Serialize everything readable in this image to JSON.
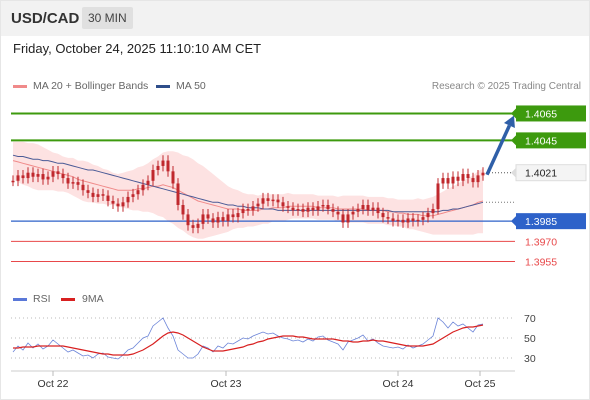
{
  "header": {
    "pair": "USD/CAD",
    "timeframe": "30 MIN"
  },
  "datetime": "Friday, October 24, 2025 11:10:10 AM CET",
  "legend": {
    "ma20": "MA 20 + Bollinger Bands",
    "ma50": "MA 50",
    "rsi": "RSI",
    "rsi_ma": "9MA"
  },
  "research": "Research © 2025 Trading Central",
  "colors": {
    "green": "#3d9a0e",
    "blue": "#2e62c9",
    "red": "#e8484a",
    "candle": "#c0282d",
    "ma20": "#f08a8a",
    "ma50": "#4a5a96",
    "band": "#fde2e2",
    "rsi": "#6b84d8",
    "rsi_ma": "#d82020",
    "arrow": "#2f5fa8"
  },
  "chart_data": {
    "type": "candlestick",
    "x_labels": [
      "Oct 22",
      "Oct 23",
      "Oct 24",
      "Oct 25"
    ],
    "price_range": [
      1.3945,
      1.4075
    ],
    "current_price": "1.4021",
    "levels": [
      {
        "label": "1.4065",
        "value": 1.4065,
        "style": "resistance"
      },
      {
        "label": "1.4045",
        "value": 1.4045,
        "style": "resistance"
      },
      {
        "label": "1.3985",
        "value": 1.3985,
        "style": "pivot"
      },
      {
        "label": "1.3970",
        "value": 1.397,
        "style": "support"
      },
      {
        "label": "1.3955",
        "value": 1.3955,
        "style": "support"
      }
    ],
    "closes": [
      1.4015,
      1.4019,
      1.4017,
      1.4021,
      1.4018,
      1.402,
      1.4016,
      1.4018,
      1.4022,
      1.402,
      1.4017,
      1.4013,
      1.4014,
      1.4012,
      1.4008,
      1.4006,
      1.4003,
      1.4005,
      1.4004,
      1.4,
      1.3998,
      1.3996,
      1.3999,
      1.4003,
      1.4005,
      1.4008,
      1.4012,
      1.4015,
      1.4023,
      1.4026,
      1.403,
      1.4022,
      1.4013,
      1.3997,
      1.399,
      1.3982,
      1.398,
      1.3983,
      1.399,
      1.3987,
      1.3984,
      1.3988,
      1.3985,
      1.399,
      1.3988,
      1.3991,
      1.3994,
      1.3993,
      1.3996,
      1.3998,
      1.4002,
      1.4,
      1.4001,
      1.3999,
      1.3996,
      1.3995,
      1.3993,
      1.3994,
      1.3992,
      1.3995,
      1.3993,
      1.3996,
      1.3997,
      1.3994,
      1.3992,
      1.399,
      1.3984,
      1.399,
      1.3992,
      1.3994,
      1.3997,
      1.3993,
      1.3995,
      1.3991,
      1.3988,
      1.3987,
      1.3985,
      1.3986,
      1.3984,
      1.3987,
      1.3985,
      1.3986,
      1.3988,
      1.3991,
      1.3994,
      1.4013,
      1.4017,
      1.4013,
      1.4018,
      1.4015,
      1.402,
      1.4017,
      1.4014,
      1.4019,
      1.4021
    ],
    "ma20": [
      1.403,
      1.4029,
      1.4028,
      1.4027,
      1.4026,
      1.4025,
      1.4024,
      1.4023,
      1.4022,
      1.4021,
      1.402,
      1.4019,
      1.4018,
      1.4016,
      1.4015,
      1.4014,
      1.4013,
      1.4012,
      1.4011,
      1.401,
      1.4009,
      1.4008,
      1.4008,
      1.4008,
      1.4008,
      1.4009,
      1.4009,
      1.401,
      1.4011,
      1.4011,
      1.4012,
      1.4011,
      1.401,
      1.4008,
      1.4006,
      1.4004,
      1.4002,
      1.4,
      1.3999,
      1.3998,
      1.3997,
      1.3996,
      1.3995,
      1.3994,
      1.3994,
      1.3994,
      1.3993,
      1.3993,
      1.3993,
      1.3993,
      1.3994,
      1.3994,
      1.3995,
      1.3995,
      1.3995,
      1.3996,
      1.3996,
      1.3996,
      1.3996,
      1.3996,
      1.3996,
      1.3995,
      1.3995,
      1.3995,
      1.3995,
      1.3994,
      1.3994,
      1.3994,
      1.3994,
      1.3994,
      1.3994,
      1.3993,
      1.3993,
      1.3993,
      1.3993,
      1.3992,
      1.3992,
      1.3991,
      1.3991,
      1.399,
      1.399,
      1.399,
      1.3989,
      1.3989,
      1.3989,
      1.399,
      1.3991,
      1.3992,
      1.3993,
      1.3994,
      1.3995,
      1.3996,
      1.3997,
      1.3999,
      1.4
    ],
    "ma50": [
      1.4034,
      1.4033,
      1.4033,
      1.4032,
      1.4031,
      1.4031,
      1.403,
      1.403,
      1.4029,
      1.4028,
      1.4028,
      1.4027,
      1.4026,
      1.4025,
      1.4024,
      1.4023,
      1.4023,
      1.4022,
      1.4021,
      1.402,
      1.4019,
      1.4018,
      1.4017,
      1.4016,
      1.4015,
      1.4014,
      1.4013,
      1.4012,
      1.4011,
      1.401,
      1.4009,
      1.4008,
      1.4007,
      1.4006,
      1.4005,
      1.4004,
      1.4003,
      1.4002,
      1.4001,
      1.4,
      1.3999,
      1.3999,
      1.3998,
      1.3997,
      1.3997,
      1.3996,
      1.3996,
      1.3995,
      1.3995,
      1.3995,
      1.3994,
      1.3994,
      1.3994,
      1.3993,
      1.3993,
      1.3993,
      1.3993,
      1.3993,
      1.3993,
      1.3993,
      1.3993,
      1.3993,
      1.3993,
      1.3993,
      1.3993,
      1.3993,
      1.3993,
      1.3993,
      1.3993,
      1.3993,
      1.3993,
      1.3993,
      1.3993,
      1.3993,
      1.3993,
      1.3993,
      1.3992,
      1.3992,
      1.3992,
      1.3992,
      1.3992,
      1.3992,
      1.3992,
      1.3992,
      1.3992,
      1.3992,
      1.3993,
      1.3993,
      1.3994,
      1.3994,
      1.3995,
      1.3996,
      1.3997,
      1.3998,
      1.3999
    ],
    "bb_width": [
      0.0014,
      0.0015,
      0.0016,
      0.0016,
      0.0017,
      0.0017,
      0.0016,
      0.0015,
      0.0014,
      0.0014,
      0.0013,
      0.0013,
      0.0014,
      0.0014,
      0.0015,
      0.0015,
      0.0014,
      0.0014,
      0.0013,
      0.0013,
      0.0012,
      0.0012,
      0.0013,
      0.0014,
      0.0015,
      0.0016,
      0.0017,
      0.0018,
      0.002,
      0.0022,
      0.0024,
      0.0026,
      0.0027,
      0.0028,
      0.0028,
      0.0029,
      0.0029,
      0.0028,
      0.0027,
      0.0025,
      0.0023,
      0.0021,
      0.0019,
      0.0017,
      0.0015,
      0.0014,
      0.0013,
      0.0012,
      0.0012,
      0.0011,
      0.0011,
      0.0011,
      0.001,
      0.001,
      0.001,
      0.001,
      0.0009,
      0.0009,
      0.0009,
      0.0009,
      0.0009,
      0.0009,
      0.0009,
      0.0009,
      0.0009,
      0.0009,
      0.001,
      0.001,
      0.001,
      0.001,
      0.001,
      0.001,
      0.001,
      0.001,
      0.001,
      0.001,
      0.001,
      0.001,
      0.001,
      0.0011,
      0.0011,
      0.0012,
      0.0012,
      0.0013,
      0.0014,
      0.0015,
      0.0016,
      0.0017,
      0.0018,
      0.0019,
      0.002,
      0.0021,
      0.0022,
      0.0023,
      0.0024
    ],
    "rsi_axis": {
      "range": [
        20,
        80
      ],
      "ticks": [
        "70",
        "50",
        "30"
      ]
    },
    "rsi": [
      36,
      42,
      38,
      45,
      40,
      44,
      39,
      42,
      48,
      44,
      40,
      36,
      38,
      35,
      32,
      33,
      30,
      34,
      35,
      31,
      30,
      29,
      33,
      38,
      40,
      45,
      50,
      52,
      62,
      66,
      70,
      60,
      52,
      38,
      34,
      30,
      30,
      34,
      42,
      40,
      36,
      42,
      40,
      45,
      44,
      47,
      50,
      49,
      52,
      54,
      56,
      54,
      55,
      52,
      50,
      49,
      47,
      48,
      46,
      49,
      47,
      51,
      52,
      48,
      46,
      44,
      38,
      46,
      48,
      50,
      53,
      47,
      49,
      45,
      42,
      41,
      40,
      41,
      39,
      43,
      40,
      42,
      44,
      48,
      52,
      70,
      66,
      60,
      66,
      62,
      64,
      60,
      56,
      63,
      64
    ],
    "rsi_ma": [
      40,
      40,
      41,
      41,
      41,
      42,
      42,
      42,
      42,
      42,
      42,
      41,
      40,
      39,
      38,
      37,
      36,
      35,
      34,
      34,
      33,
      33,
      33,
      33,
      34,
      36,
      38,
      41,
      44,
      48,
      52,
      55,
      56,
      55,
      53,
      50,
      47,
      44,
      41,
      39,
      37,
      37,
      37,
      38,
      39,
      40,
      41,
      43,
      44,
      46,
      47,
      49,
      50,
      51,
      52,
      52,
      52,
      51,
      51,
      50,
      49,
      49,
      49,
      49,
      49,
      48,
      47,
      47,
      46,
      46,
      47,
      47,
      48,
      47,
      47,
      46,
      45,
      44,
      43,
      42,
      42,
      42,
      42,
      43,
      44,
      47,
      50,
      53,
      56,
      58,
      60,
      61,
      61,
      62,
      63
    ]
  }
}
